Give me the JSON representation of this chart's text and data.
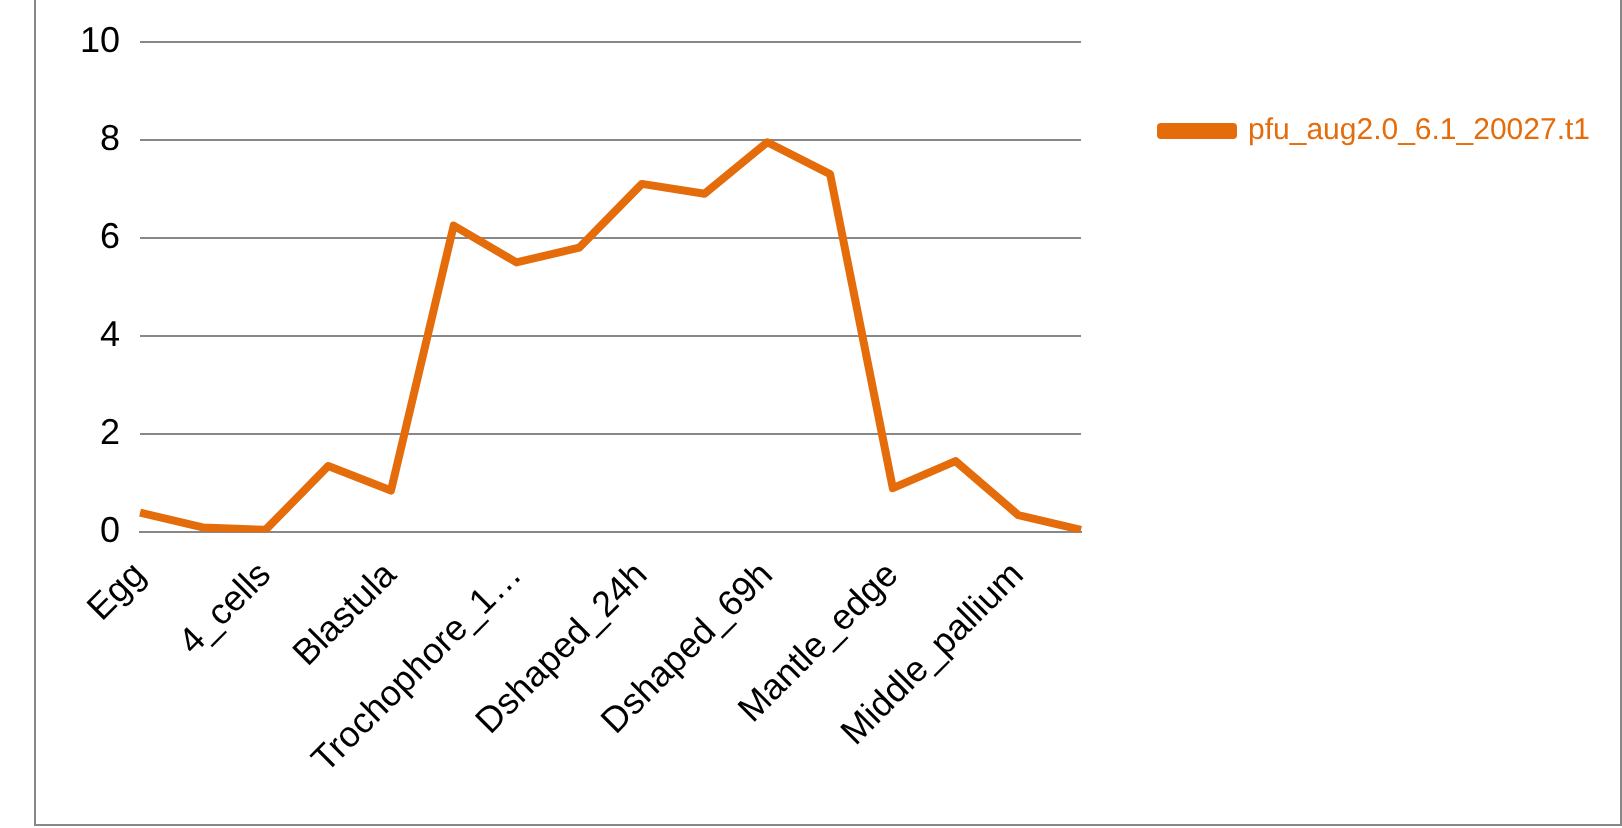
{
  "chart_data": {
    "type": "line",
    "categories": [
      "Egg",
      null,
      "4_cells",
      null,
      "Blastula",
      null,
      "Trochophore_1…",
      null,
      "Dshaped_24h",
      null,
      "Dshaped_69h",
      null,
      "Mantle_edge",
      null,
      "Middle_pallium",
      null
    ],
    "series": [
      {
        "name": "pfu_aug2.0_6.1_20027.t1",
        "color": "#e46c0a",
        "values": [
          0.4,
          0.1,
          0.05,
          1.35,
          0.85,
          6.25,
          5.5,
          5.8,
          7.1,
          6.9,
          7.95,
          7.3,
          0.9,
          1.45,
          0.35,
          0.05
        ]
      }
    ],
    "ylim": [
      0,
      10
    ],
    "yticks": [
      0,
      2,
      4,
      6,
      8,
      10
    ],
    "grid": "y",
    "legend": "right",
    "marker": "none",
    "line_style": "solid"
  }
}
